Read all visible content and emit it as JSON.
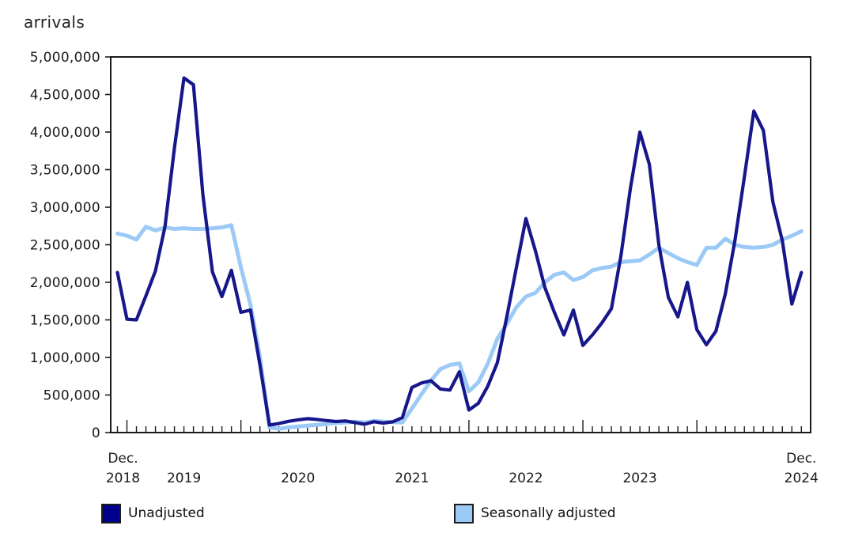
{
  "title": "arrivals",
  "colors": {
    "unadjusted": "#17178c",
    "seasonally_adjusted": "#9ccaf7",
    "legend_unadjusted_swatch": "#00008b",
    "legend_seasonal_swatch": "#9ccaf7",
    "axis": "#1a1a1a",
    "text": "#1a1a1a"
  },
  "y_axis": {
    "labels": [
      "5,000,000",
      "4,500,000",
      "4,000,000",
      "3,500,000",
      "3,000,000",
      "2,500,000",
      "2,000,000",
      "1,500,000",
      "1,000,000",
      "500,000",
      "0"
    ],
    "min": 0,
    "max": 5000000,
    "step": 500000
  },
  "x_axis": {
    "first_line1": "Dec.",
    "first_line2": "2018",
    "years": [
      "2019",
      "2020",
      "2021",
      "2022",
      "2023"
    ],
    "last_line1": "Dec.",
    "last_line2": "2024"
  },
  "legend": {
    "items": [
      {
        "label": "Unadjusted",
        "color": "#00008b"
      },
      {
        "label": "Seasonally adjusted",
        "color": "#9ccaf7"
      }
    ]
  },
  "chart_data": {
    "type": "line",
    "title": "arrivals",
    "ylabel": "arrivals",
    "xlabel": "",
    "ylim": [
      0,
      5000000
    ],
    "grid": false,
    "legend_position": "bottom",
    "x": [
      "Dec 2018",
      "Jan 2019",
      "Feb 2019",
      "Mar 2019",
      "Apr 2019",
      "May 2019",
      "Jun 2019",
      "Jul 2019",
      "Aug 2019",
      "Sep 2019",
      "Oct 2019",
      "Nov 2019",
      "Dec 2019",
      "Jan 2020",
      "Feb 2020",
      "Mar 2020",
      "Apr 2020",
      "May 2020",
      "Jun 2020",
      "Jul 2020",
      "Aug 2020",
      "Sep 2020",
      "Oct 2020",
      "Nov 2020",
      "Dec 2020",
      "Jan 2021",
      "Feb 2021",
      "Mar 2021",
      "Apr 2021",
      "May 2021",
      "Jun 2021",
      "Jul 2021",
      "Aug 2021",
      "Sep 2021",
      "Oct 2021",
      "Nov 2021",
      "Dec 2021",
      "Jan 2022",
      "Feb 2022",
      "Mar 2022",
      "Apr 2022",
      "May 2022",
      "Jun 2022",
      "Jul 2022",
      "Aug 2022",
      "Sep 2022",
      "Oct 2022",
      "Nov 2022",
      "Dec 2022",
      "Jan 2023",
      "Feb 2023",
      "Mar 2023",
      "Apr 2023",
      "May 2023",
      "Jun 2023",
      "Jul 2023",
      "Aug 2023",
      "Sep 2023",
      "Oct 2023",
      "Nov 2023",
      "Dec 2023",
      "Jan 2024",
      "Feb 2024",
      "Mar 2024",
      "Apr 2024",
      "May 2024",
      "Jun 2024",
      "Jul 2024",
      "Aug 2024",
      "Sep 2024",
      "Oct 2024",
      "Nov 2024",
      "Dec 2024"
    ],
    "series": [
      {
        "name": "Unadjusted",
        "color": "#17178c",
        "values": [
          2130000,
          1510000,
          1500000,
          1820000,
          2150000,
          2740000,
          3790000,
          4720000,
          4630000,
          3160000,
          2140000,
          1810000,
          2160000,
          1600000,
          1630000,
          900000,
          100000,
          120000,
          150000,
          170000,
          185000,
          175000,
          160000,
          147000,
          155000,
          134000,
          110000,
          144000,
          126000,
          144000,
          200000,
          600000,
          660000,
          690000,
          580000,
          565000,
          810000,
          300000,
          390000,
          620000,
          930000,
          1550000,
          2200000,
          2850000,
          2420000,
          1930000,
          1600000,
          1300000,
          1630000,
          1160000,
          1300000,
          1460000,
          1650000,
          2350000,
          3250000,
          4000000,
          3570000,
          2500000,
          1800000,
          1540000,
          2000000,
          1370000,
          1170000,
          1350000,
          1850000,
          2550000,
          3400000,
          4280000,
          4020000,
          3070000,
          2550000,
          1710000,
          2130000
        ]
      },
      {
        "name": "Seasonally adjusted",
        "color": "#9ccaf7",
        "values": [
          2650000,
          2620000,
          2570000,
          2740000,
          2690000,
          2730000,
          2710000,
          2720000,
          2710000,
          2710000,
          2720000,
          2730000,
          2760000,
          2200000,
          1700000,
          1000000,
          70000,
          50000,
          70000,
          80000,
          92000,
          102000,
          113000,
          126000,
          134000,
          144000,
          134000,
          155000,
          144000,
          140000,
          135000,
          320000,
          510000,
          690000,
          845000,
          900000,
          920000,
          550000,
          670000,
          920000,
          1250000,
          1450000,
          1670000,
          1810000,
          1860000,
          2000000,
          2100000,
          2130000,
          2030000,
          2070000,
          2160000,
          2190000,
          2210000,
          2270000,
          2280000,
          2290000,
          2370000,
          2460000,
          2390000,
          2320000,
          2270000,
          2230000,
          2460000,
          2460000,
          2580000,
          2500000,
          2470000,
          2460000,
          2470000,
          2500000,
          2570000,
          2620000,
          2680000
        ]
      }
    ]
  }
}
